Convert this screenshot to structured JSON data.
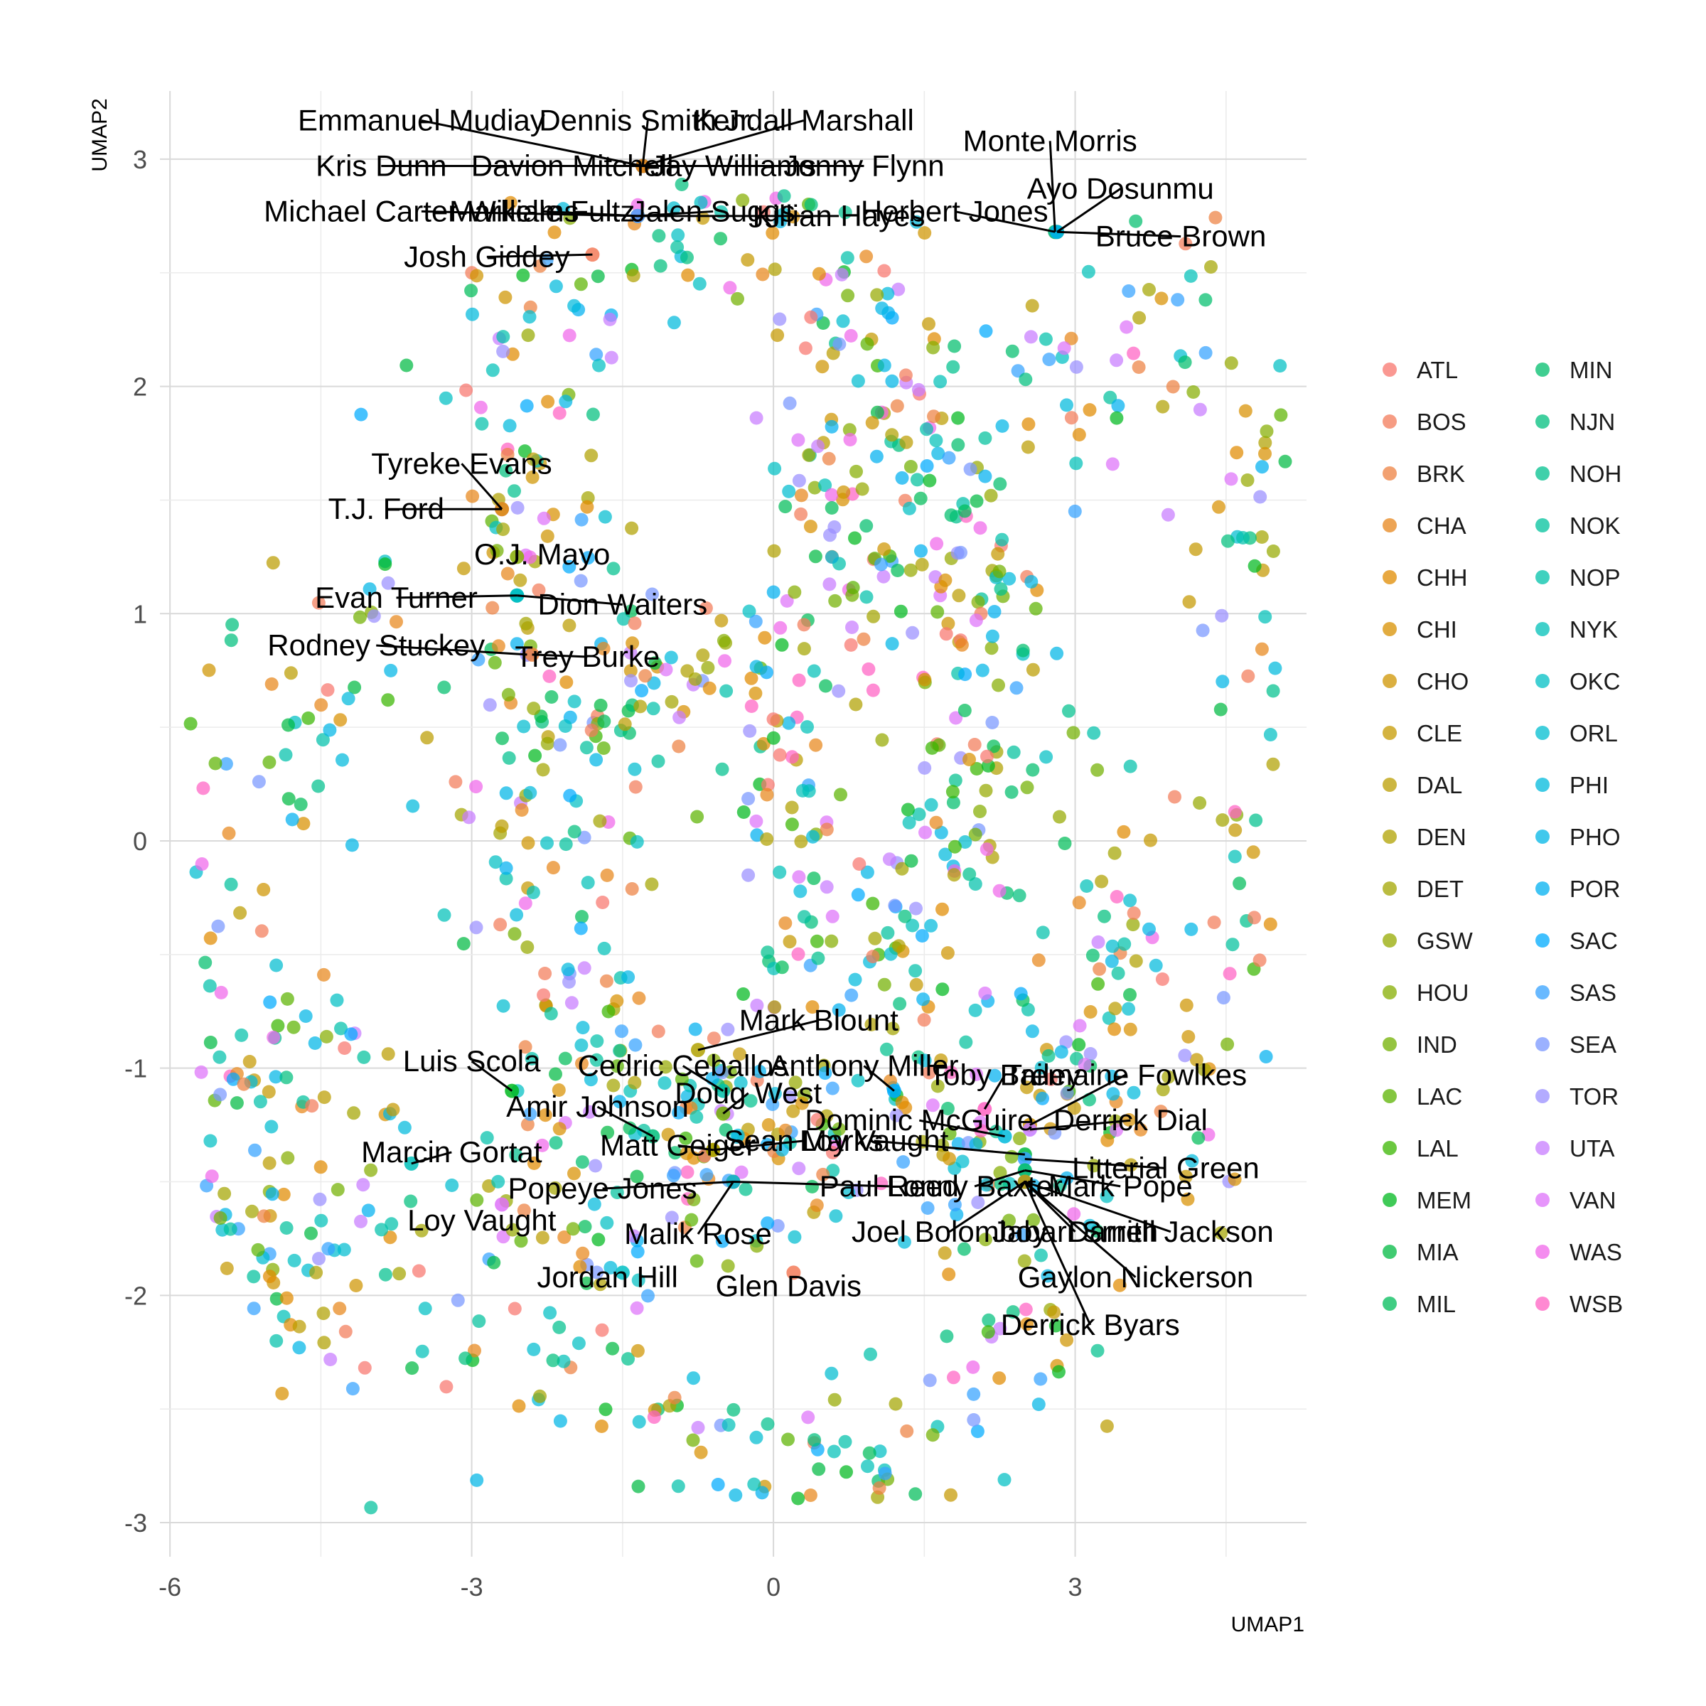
{
  "chart_data": {
    "type": "scatter",
    "title": "",
    "xlabel": "UMAP1",
    "ylabel": "UMAP2",
    "xlim": [
      -6.1,
      5.3
    ],
    "ylim": [
      -3.15,
      3.3
    ],
    "xticks": [
      -6,
      -3,
      0,
      3
    ],
    "yticks": [
      -3,
      -2,
      -1,
      0,
      1,
      2,
      3
    ],
    "grid": true,
    "legend_position": "right",
    "legend_columns": 2,
    "teams": [
      "ATL",
      "BOS",
      "BRK",
      "CHA",
      "CHH",
      "CHI",
      "CHO",
      "CLE",
      "DAL",
      "DEN",
      "DET",
      "GSW",
      "HOU",
      "IND",
      "LAC",
      "LAL",
      "MEM",
      "MIA",
      "MIL",
      "MIN",
      "NJN",
      "NOH",
      "NOK",
      "NOP",
      "NYK",
      "OKC",
      "ORL",
      "PHI",
      "PHO",
      "POR",
      "SAC",
      "SAS",
      "SEA",
      "TOR",
      "UTA",
      "VAN",
      "WAS",
      "WSB"
    ],
    "team_colors": [
      "#F8766D",
      "#F37B59",
      "#ED8141",
      "#E7861B",
      "#E08B00",
      "#D89000",
      "#CF9400",
      "#C59900",
      "#BB9D00",
      "#B0A100",
      "#A3A500",
      "#95A900",
      "#85AD00",
      "#72B000",
      "#5BB300",
      "#39B600",
      "#00B81F",
      "#00BA42",
      "#00BC59",
      "#00BE6C",
      "#00BF7D",
      "#00C08D",
      "#00C19C",
      "#00C1AA",
      "#00C0B8",
      "#00BFC4",
      "#00BDD0",
      "#00BADC",
      "#00B6E6",
      "#00B0F0",
      "#00ABFD",
      "#35A2FF",
      "#7997FF",
      "#9A8FFF",
      "#C77CFF",
      "#DE71F9",
      "#F066EA",
      "#FF61C3"
    ],
    "clusters": [
      {
        "kind": "ring",
        "cx": -3.6,
        "cy": -0.55,
        "rx": 2.0,
        "ry": 1.55,
        "n": 230,
        "spread": 0.22
      },
      {
        "kind": "ring",
        "cx": -0.8,
        "cy": 1.75,
        "rx": 2.0,
        "ry": 1.0,
        "n": 230,
        "spread": 0.22
      },
      {
        "kind": "ring",
        "cx": 1.05,
        "cy": 0.95,
        "rx": 0.95,
        "ry": 1.5,
        "n": 110,
        "spread": 0.2
      },
      {
        "kind": "ring",
        "cx": 3.55,
        "cy": 0.6,
        "rx": 1.35,
        "ry": 1.85,
        "n": 210,
        "spread": 0.22
      },
      {
        "kind": "ring",
        "cx": -1.1,
        "cy": -0.2,
        "rx": 1.45,
        "ry": 0.85,
        "n": 150,
        "spread": 0.22
      },
      {
        "kind": "ring",
        "cx": 0.45,
        "cy": -2.0,
        "rx": 2.05,
        "ry": 0.8,
        "n": 180,
        "spread": 0.22
      },
      {
        "kind": "ring",
        "cx": 2.45,
        "cy": -0.5,
        "rx": 1.15,
        "ry": 0.9,
        "n": 110,
        "spread": 0.2
      },
      {
        "kind": "blob",
        "cx": -4.6,
        "cy": -1.4,
        "rx": 1.0,
        "ry": 0.9,
        "n": 60,
        "spread": 0.0
      },
      {
        "kind": "blob",
        "cx": -0.2,
        "cy": -1.4,
        "rx": 0.9,
        "ry": 0.5,
        "n": 40,
        "spread": 0.0
      },
      {
        "kind": "blob",
        "cx": 1.4,
        "cy": 1.2,
        "rx": 0.9,
        "ry": 0.9,
        "n": 60,
        "spread": 0.0
      }
    ],
    "labeled_points": [
      {
        "name": "Emmanuel Mudiay",
        "x": -1.3,
        "y": 2.97,
        "tx": -3.5,
        "ty": 3.17
      },
      {
        "name": "Dennis Smith Jr.",
        "x": -1.3,
        "y": 2.97,
        "tx": -1.25,
        "ty": 3.17
      },
      {
        "name": "Kendall Marshall",
        "x": -1.3,
        "y": 2.97,
        "tx": 0.3,
        "ty": 3.17
      },
      {
        "name": "Kris Dunn",
        "x": -1.3,
        "y": 2.97,
        "tx": -3.9,
        "ty": 2.97
      },
      {
        "name": "Davion Mitchell",
        "x": -1.3,
        "y": 2.97,
        "tx": -2.0,
        "ty": 2.97
      },
      {
        "name": "Jay Williams",
        "x": -1.3,
        "y": 2.97,
        "tx": -0.4,
        "ty": 2.97
      },
      {
        "name": "Jonny Flynn",
        "x": -1.3,
        "y": 2.97,
        "tx": 0.9,
        "ty": 2.97
      },
      {
        "name": "Michael Carter-Williams",
        "x": -1.35,
        "y": 2.75,
        "tx": -3.5,
        "ty": 2.77
      },
      {
        "name": "Markelle Fultz",
        "x": -1.35,
        "y": 2.75,
        "tx": -2.3,
        "ty": 2.77
      },
      {
        "name": "Jalen Suggs",
        "x": -1.35,
        "y": 2.75,
        "tx": -0.6,
        "ty": 2.77
      },
      {
        "name": "Killian Hayes",
        "x": -1.35,
        "y": 2.75,
        "tx": 0.65,
        "ty": 2.75
      },
      {
        "name": "Josh Giddey",
        "x": -1.8,
        "y": 2.58,
        "tx": -2.85,
        "ty": 2.57
      },
      {
        "name": "Monte Morris",
        "x": 2.8,
        "y": 2.68,
        "tx": 2.75,
        "ty": 3.08
      },
      {
        "name": "Ayo Dosunmu",
        "x": 2.82,
        "y": 2.68,
        "tx": 3.45,
        "ty": 2.87
      },
      {
        "name": "Herbert Jones",
        "x": 2.8,
        "y": 2.68,
        "tx": 1.8,
        "ty": 2.77
      },
      {
        "name": "Bruce Brown",
        "x": 2.82,
        "y": 2.68,
        "tx": 4.05,
        "ty": 2.66
      },
      {
        "name": "Tyreke Evans",
        "x": -2.7,
        "y": 1.46,
        "tx": -3.1,
        "ty": 1.66
      },
      {
        "name": "T.J. Ford",
        "x": -2.7,
        "y": 1.46,
        "tx": -3.85,
        "ty": 1.46
      },
      {
        "name": "O.J. Mayo",
        "x": -2.55,
        "y": 1.25,
        "tx": -2.3,
        "ty": 1.26
      },
      {
        "name": "Evan Turner",
        "x": -2.55,
        "y": 1.08,
        "tx": -3.75,
        "ty": 1.07
      },
      {
        "name": "Dion Waiters",
        "x": -2.55,
        "y": 1.08,
        "tx": -1.5,
        "ty": 1.04
      },
      {
        "name": "Rodney Stuckey",
        "x": -2.45,
        "y": 0.82,
        "tx": -3.95,
        "ty": 0.86
      },
      {
        "name": "Trey Burke",
        "x": -2.4,
        "y": 0.82,
        "tx": -1.85,
        "ty": 0.81
      },
      {
        "name": "Mark Blount",
        "x": -0.75,
        "y": -0.92,
        "tx": 0.45,
        "ty": -0.79
      },
      {
        "name": "Luis Scola",
        "x": -2.6,
        "y": -1.1,
        "tx": -3.0,
        "ty": -0.97
      },
      {
        "name": "Cedric Ceballos",
        "x": -0.5,
        "y": -1.1,
        "tx": -0.9,
        "ty": -0.99
      },
      {
        "name": "Anthony Miller",
        "x": 1.2,
        "y": -1.1,
        "tx": 0.9,
        "ty": -0.99
      },
      {
        "name": "Toby Bailey",
        "x": 2.1,
        "y": -1.18,
        "tx": 2.3,
        "ty": -1.03
      },
      {
        "name": "Tremaine Fowlkes",
        "x": 2.55,
        "y": -1.25,
        "tx": 3.5,
        "ty": -1.03
      },
      {
        "name": "Doug West",
        "x": -0.5,
        "y": -1.2,
        "tx": -0.25,
        "ty": -1.11
      },
      {
        "name": "Amir Johnson",
        "x": -1.2,
        "y": -1.3,
        "tx": -1.75,
        "ty": -1.17
      },
      {
        "name": "Dominic McGuire",
        "x": 2.3,
        "y": -1.3,
        "tx": 1.45,
        "ty": -1.23
      },
      {
        "name": "Derrick Dial",
        "x": 2.55,
        "y": -1.27,
        "tx": 3.55,
        "ty": -1.23
      },
      {
        "name": "Matt Geiger",
        "x": -0.6,
        "y": -1.36,
        "tx": -0.95,
        "ty": -1.34
      },
      {
        "name": "Sean Marks",
        "x": -0.6,
        "y": -1.36,
        "tx": 0.3,
        "ty": -1.32
      },
      {
        "name": "Loy Vaught",
        "x": 2.5,
        "y": -1.38,
        "tx": 1.0,
        "ty": -1.32
      },
      {
        "name": "Marcin Gortat",
        "x": -3.6,
        "y": -1.42,
        "tx": -3.2,
        "ty": -1.37
      },
      {
        "name": "Litterial Green",
        "x": 2.5,
        "y": -1.4,
        "tx": 3.9,
        "ty": -1.44
      },
      {
        "name": "Popeye Jones",
        "x": -0.4,
        "y": -1.5,
        "tx": -1.7,
        "ty": -1.53
      },
      {
        "name": "Paul Reed",
        "x": -0.4,
        "y": -1.5,
        "tx": 1.15,
        "ty": -1.52
      },
      {
        "name": "Lonny Baxter",
        "x": 2.5,
        "y": -1.45,
        "tx": 2.0,
        "ty": -1.52
      },
      {
        "name": "Mark Pope",
        "x": 2.5,
        "y": -1.45,
        "tx": 3.45,
        "ty": -1.52
      },
      {
        "name": "Malik Rose",
        "x": -0.4,
        "y": -1.5,
        "tx": -0.75,
        "ty": -1.73
      },
      {
        "name": "Loy Vaught",
        "x": -2.7,
        "y": -1.6,
        "tx": -2.9,
        "ty": -1.67
      },
      {
        "name": "Joel Bolomboy",
        "x": 2.5,
        "y": -1.5,
        "tx": 1.75,
        "ty": -1.72
      },
      {
        "name": "Jabari Smith",
        "x": 2.5,
        "y": -1.5,
        "tx": 3.0,
        "ty": -1.72
      },
      {
        "name": "Darrell Jackson",
        "x": 2.5,
        "y": -1.5,
        "tx": 3.95,
        "ty": -1.72
      },
      {
        "name": "Jordan Hill",
        "x": -1.5,
        "y": -1.9,
        "tx": -1.65,
        "ty": -1.92
      },
      {
        "name": "Gaylon Nickerson",
        "x": 2.5,
        "y": -1.5,
        "tx": 3.6,
        "ty": -1.92
      },
      {
        "name": "Glen Davis",
        "x": 0.2,
        "y": -1.9,
        "tx": 0.15,
        "ty": -1.96
      },
      {
        "name": "Derrick Byars",
        "x": 2.5,
        "y": -1.5,
        "tx": 3.15,
        "ty": -2.13
      }
    ]
  }
}
